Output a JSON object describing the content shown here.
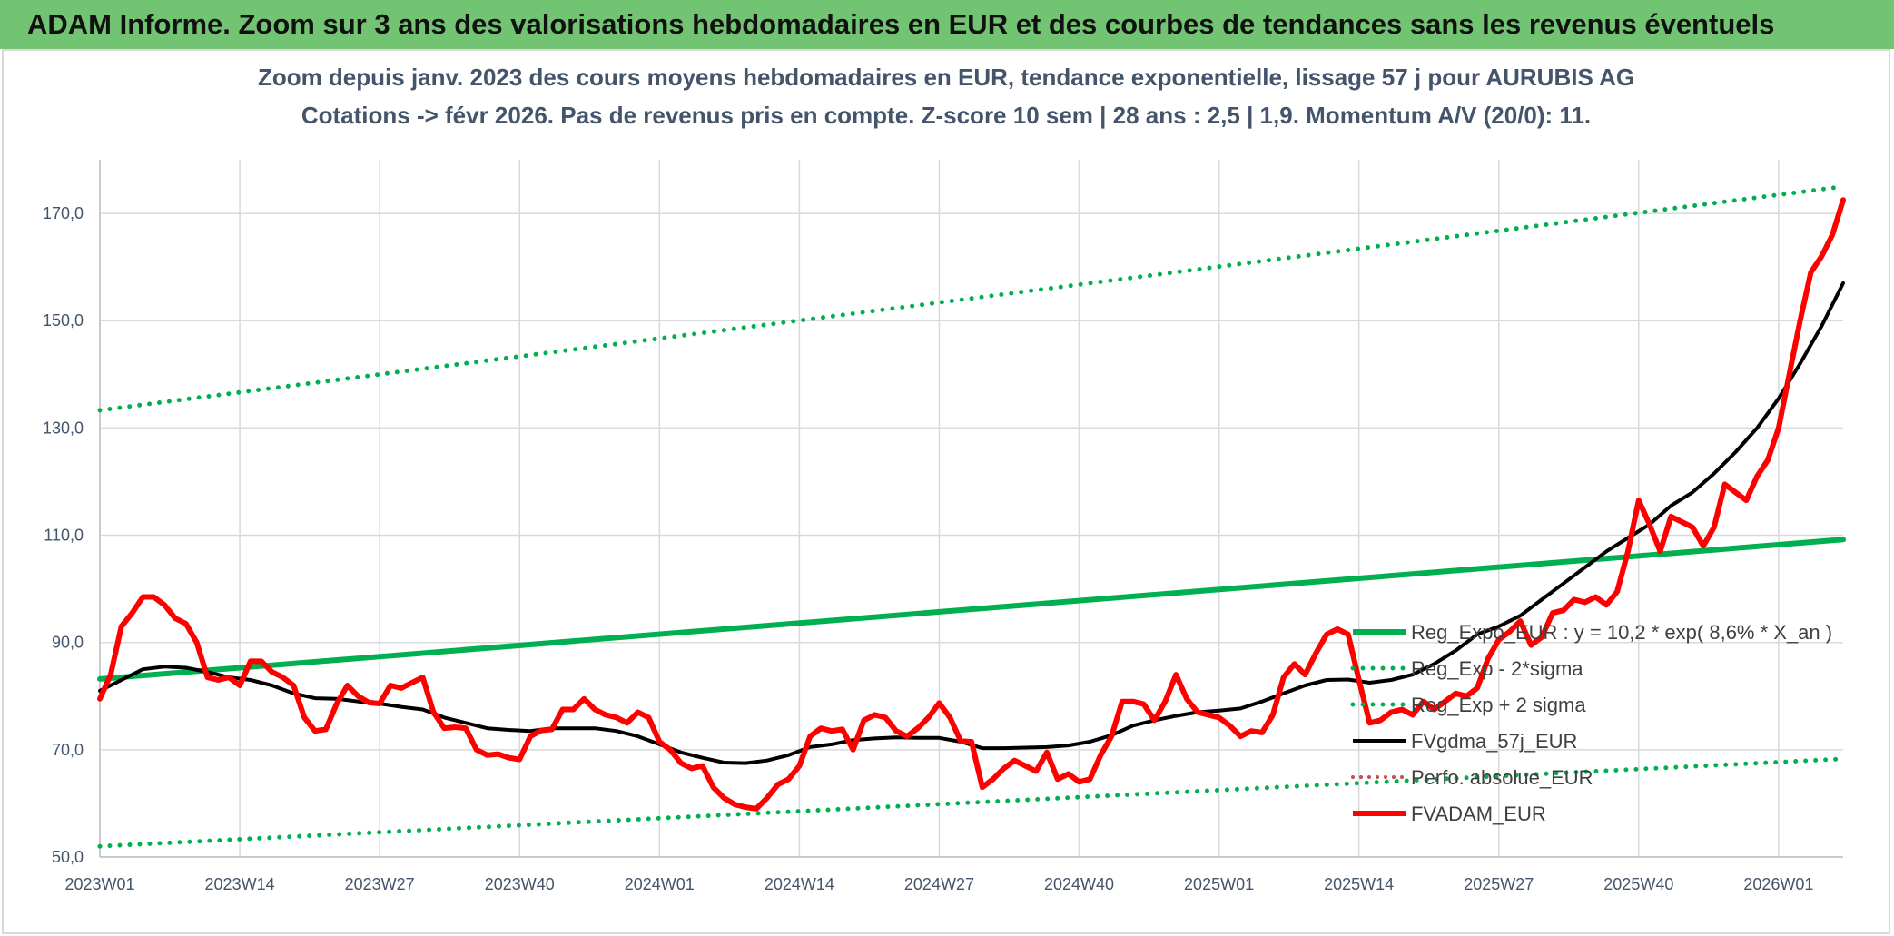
{
  "banner": {
    "title": "ADAM Informe. Zoom sur 3 ans des valorisations hebdomadaires en EUR et des courbes de tendances sans les revenus éventuels"
  },
  "chart_data": {
    "type": "line",
    "title": "Zoom depuis janv. 2023 des cours moyens hebdomadaires en EUR, tendance exponentielle, lissage 57 j pour AURUBIS AG",
    "subtitle": "Cotations -> févr 2026. Pas de revenus pris en compte. Z-score 10 sem | 28 ans : 2,5 | 1,9. Momentum A/V (20/0): 11.",
    "xlabel": "",
    "ylabel": "",
    "x_range": [
      0,
      162
    ],
    "ylim": [
      50,
      180
    ],
    "grid": true,
    "legend_position": "right",
    "x_ticks": [
      {
        "x": 0,
        "label": "2023W01"
      },
      {
        "x": 13,
        "label": "2023W14"
      },
      {
        "x": 26,
        "label": "2023W27"
      },
      {
        "x": 39,
        "label": "2023W40"
      },
      {
        "x": 52,
        "label": "2024W01"
      },
      {
        "x": 65,
        "label": "2024W14"
      },
      {
        "x": 78,
        "label": "2024W27"
      },
      {
        "x": 91,
        "label": "2024W40"
      },
      {
        "x": 104,
        "label": "2025W01"
      },
      {
        "x": 117,
        "label": "2025W14"
      },
      {
        "x": 130,
        "label": "2025W27"
      },
      {
        "x": 143,
        "label": "2025W40"
      },
      {
        "x": 156,
        "label": "2026W01"
      }
    ],
    "y_ticks": [
      {
        "y": 50,
        "label": "50,0"
      },
      {
        "y": 70,
        "label": "70,0"
      },
      {
        "y": 90,
        "label": "90,0"
      },
      {
        "y": 110,
        "label": "110,0"
      },
      {
        "y": 130,
        "label": "130,0"
      },
      {
        "y": 150,
        "label": "150,0"
      },
      {
        "y": 170,
        "label": "170,0"
      }
    ],
    "series": [
      {
        "name": "Reg_Expo_EUR : y = 10,2 * exp( 8,6% * X_an )",
        "color": "#00b050",
        "style": "solid-thick",
        "points": [
          [
            0,
            83.2
          ],
          [
            162,
            109.2
          ]
        ]
      },
      {
        "name": "Reg_Exp - 2*sigma",
        "color": "#00b050",
        "style": "dotted",
        "points": [
          [
            0,
            52.0
          ],
          [
            162,
            68.3
          ]
        ]
      },
      {
        "name": "Reg_Exp + 2 sigma",
        "color": "#00b050",
        "style": "dotted",
        "points": [
          [
            0,
            133.3
          ],
          [
            162,
            175.0
          ]
        ]
      },
      {
        "name": "FVgdma_57j_EUR",
        "color": "#000000",
        "style": "solid",
        "points": [
          [
            0,
            81
          ],
          [
            2,
            83
          ],
          [
            4,
            85
          ],
          [
            6,
            85.5
          ],
          [
            8,
            85.3
          ],
          [
            10,
            84.5
          ],
          [
            12,
            83.5
          ],
          [
            14,
            83
          ],
          [
            16,
            82
          ],
          [
            18,
            80.5
          ],
          [
            20,
            79.6
          ],
          [
            22,
            79.5
          ],
          [
            24,
            79
          ],
          [
            26,
            78.6
          ],
          [
            28,
            78
          ],
          [
            30,
            77.5
          ],
          [
            32,
            76
          ],
          [
            34,
            75
          ],
          [
            36,
            74
          ],
          [
            38,
            73.7
          ],
          [
            40,
            73.5
          ],
          [
            42,
            74
          ],
          [
            44,
            74
          ],
          [
            46,
            74
          ],
          [
            48,
            73.5
          ],
          [
            50,
            72.5
          ],
          [
            52,
            71
          ],
          [
            54,
            69.5
          ],
          [
            56,
            68.5
          ],
          [
            58,
            67.6
          ],
          [
            60,
            67.5
          ],
          [
            62,
            68
          ],
          [
            64,
            69
          ],
          [
            66,
            70.5
          ],
          [
            68,
            71
          ],
          [
            70,
            71.8
          ],
          [
            72,
            72.1
          ],
          [
            74,
            72.3
          ],
          [
            76,
            72.2
          ],
          [
            78,
            72.2
          ],
          [
            80,
            71.5
          ],
          [
            82,
            70.3
          ],
          [
            84,
            70.3
          ],
          [
            86,
            70.4
          ],
          [
            88,
            70.5
          ],
          [
            90,
            70.8
          ],
          [
            92,
            71.5
          ],
          [
            94,
            72.7
          ],
          [
            96,
            74.5
          ],
          [
            98,
            75.5
          ],
          [
            100,
            76.3
          ],
          [
            102,
            77
          ],
          [
            104,
            77.3
          ],
          [
            106,
            77.7
          ],
          [
            108,
            79
          ],
          [
            110,
            80.5
          ],
          [
            112,
            82
          ],
          [
            114,
            83
          ],
          [
            116,
            83.1
          ],
          [
            118,
            82.5
          ],
          [
            120,
            83
          ],
          [
            122,
            84
          ],
          [
            124,
            86
          ],
          [
            126,
            88.5
          ],
          [
            128,
            91.5
          ],
          [
            130,
            93
          ],
          [
            132,
            95
          ],
          [
            134,
            98
          ],
          [
            136,
            101
          ],
          [
            138,
            104
          ],
          [
            140,
            107
          ],
          [
            142,
            109.5
          ],
          [
            144,
            112
          ],
          [
            146,
            115.5
          ],
          [
            148,
            118
          ],
          [
            150,
            121.5
          ],
          [
            152,
            125.5
          ],
          [
            154,
            130
          ],
          [
            156,
            135.5
          ],
          [
            158,
            142
          ],
          [
            160,
            149
          ],
          [
            162,
            157
          ]
        ]
      },
      {
        "name": "Perfo. absolue_EUR",
        "color": "#c0504d",
        "style": "dotted-legend-only",
        "points": []
      },
      {
        "name": "FVADAM_EUR",
        "color": "#ff0000",
        "style": "solid-thick",
        "points": [
          [
            0,
            79.5
          ],
          [
            1,
            84
          ],
          [
            2,
            93
          ],
          [
            3,
            95.5
          ],
          [
            4,
            98.5
          ],
          [
            5,
            98.5
          ],
          [
            6,
            97
          ],
          [
            7,
            94.5
          ],
          [
            8,
            93.5
          ],
          [
            9,
            90
          ],
          [
            10,
            83.5
          ],
          [
            11,
            83
          ],
          [
            12,
            83.5
          ],
          [
            13,
            82
          ],
          [
            14,
            86.5
          ],
          [
            15,
            86.5
          ],
          [
            16,
            84.5
          ],
          [
            17,
            83.5
          ],
          [
            18,
            82
          ],
          [
            19,
            76
          ],
          [
            20,
            73.5
          ],
          [
            21,
            73.8
          ],
          [
            22,
            78.5
          ],
          [
            23,
            82
          ],
          [
            24,
            80
          ],
          [
            25,
            78.8
          ],
          [
            26,
            78.6
          ],
          [
            27,
            82
          ],
          [
            28,
            81.5
          ],
          [
            29,
            82.5
          ],
          [
            30,
            83.5
          ],
          [
            31,
            77
          ],
          [
            32,
            74
          ],
          [
            33,
            74.2
          ],
          [
            34,
            74
          ],
          [
            35,
            70
          ],
          [
            36,
            69
          ],
          [
            37,
            69.2
          ],
          [
            38,
            68.5
          ],
          [
            39,
            68.2
          ],
          [
            40,
            72.5
          ],
          [
            41,
            73.6
          ],
          [
            42,
            73.8
          ],
          [
            43,
            77.5
          ],
          [
            44,
            77.5
          ],
          [
            45,
            79.5
          ],
          [
            46,
            77.5
          ],
          [
            47,
            76.5
          ],
          [
            48,
            76
          ],
          [
            49,
            75
          ],
          [
            50,
            77
          ],
          [
            51,
            76
          ],
          [
            52,
            71.5
          ],
          [
            53,
            70
          ],
          [
            54,
            67.5
          ],
          [
            55,
            66.5
          ],
          [
            56,
            67
          ],
          [
            57,
            63
          ],
          [
            58,
            61
          ],
          [
            59,
            59.8
          ],
          [
            60,
            59.3
          ],
          [
            61,
            59
          ],
          [
            62,
            61
          ],
          [
            63,
            63.5
          ],
          [
            64,
            64.5
          ],
          [
            65,
            67
          ],
          [
            66,
            72.5
          ],
          [
            67,
            74
          ],
          [
            68,
            73.5
          ],
          [
            69,
            73.8
          ],
          [
            70,
            70
          ],
          [
            71,
            75.5
          ],
          [
            72,
            76.5
          ],
          [
            73,
            76
          ],
          [
            74,
            73.5
          ],
          [
            75,
            72.5
          ],
          [
            76,
            74
          ],
          [
            77,
            76
          ],
          [
            78,
            78.7
          ],
          [
            79,
            76
          ],
          [
            80,
            71.6
          ],
          [
            81,
            71.5
          ],
          [
            82,
            63
          ],
          [
            83,
            64.5
          ],
          [
            84,
            66.5
          ],
          [
            85,
            68
          ],
          [
            86,
            67
          ],
          [
            87,
            66
          ],
          [
            88,
            69.5
          ],
          [
            89,
            64.5
          ],
          [
            90,
            65.5
          ],
          [
            91,
            64
          ],
          [
            92,
            64.5
          ],
          [
            93,
            69
          ],
          [
            94,
            72.5
          ],
          [
            95,
            79
          ],
          [
            96,
            79
          ],
          [
            97,
            78.5
          ],
          [
            98,
            75.5
          ],
          [
            99,
            79
          ],
          [
            100,
            84
          ],
          [
            101,
            79.5
          ],
          [
            102,
            77
          ],
          [
            103,
            76.5
          ],
          [
            104,
            76
          ],
          [
            105,
            74.5
          ],
          [
            106,
            72.5
          ],
          [
            107,
            73.5
          ],
          [
            108,
            73.2
          ],
          [
            109,
            76.5
          ],
          [
            110,
            83.5
          ],
          [
            111,
            86
          ],
          [
            112,
            84
          ],
          [
            113,
            88
          ],
          [
            114,
            91.5
          ],
          [
            115,
            92.5
          ],
          [
            116,
            91.5
          ],
          [
            117,
            83
          ],
          [
            118,
            75
          ],
          [
            119,
            75.5
          ],
          [
            120,
            77
          ],
          [
            121,
            77.5
          ],
          [
            122,
            76.5
          ],
          [
            123,
            79
          ],
          [
            124,
            77.5
          ],
          [
            125,
            79
          ],
          [
            126,
            80.5
          ],
          [
            127,
            80
          ],
          [
            128,
            81.5
          ],
          [
            129,
            87
          ],
          [
            130,
            90.5
          ],
          [
            131,
            92
          ],
          [
            132,
            94
          ],
          [
            133,
            89.5
          ],
          [
            134,
            91
          ],
          [
            135,
            95.5
          ],
          [
            136,
            96
          ],
          [
            137,
            98
          ],
          [
            138,
            97.5
          ],
          [
            139,
            98.5
          ],
          [
            140,
            97
          ],
          [
            141,
            99.5
          ],
          [
            142,
            107
          ],
          [
            143,
            116.5
          ],
          [
            144,
            112
          ],
          [
            145,
            107
          ],
          [
            146,
            113.5
          ],
          [
            147,
            112.5
          ],
          [
            148,
            111.5
          ],
          [
            149,
            108
          ],
          [
            150,
            111.5
          ],
          [
            151,
            119.5
          ],
          [
            152,
            118
          ],
          [
            153,
            116.5
          ],
          [
            154,
            121
          ],
          [
            155,
            124
          ],
          [
            156,
            130
          ],
          [
            157,
            140
          ],
          [
            158,
            150
          ],
          [
            159,
            159
          ],
          [
            160,
            162
          ],
          [
            161,
            166
          ],
          [
            162,
            172.5
          ]
        ]
      }
    ]
  }
}
